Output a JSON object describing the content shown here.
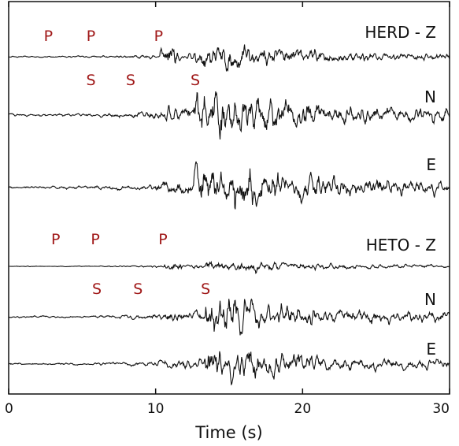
{
  "chart_data": {
    "type": "line",
    "xlabel": "Time (s)",
    "xlim": [
      0,
      30
    ],
    "xticks": [
      0,
      10,
      20,
      30
    ],
    "grid": false,
    "colors": {
      "trace": "#111111",
      "pick": "#a01818",
      "axis": "#111111"
    },
    "stations": [
      {
        "name": "HERD",
        "p_picks": [
          2.7,
          5.6,
          10.2
        ],
        "s_picks": [
          5.6,
          8.3,
          12.7
        ],
        "traces": [
          {
            "label": "HERD - Z",
            "component": "Z",
            "p_onset": 10.3,
            "s_onset": 12.6,
            "peak_amp": 0.7
          },
          {
            "label": "N",
            "component": "N",
            "p_onset": 10.3,
            "s_onset": 12.6,
            "peak_amp": 1.0
          },
          {
            "label": "E",
            "component": "E",
            "p_onset": 10.3,
            "s_onset": 12.6,
            "peak_amp": 1.0
          }
        ]
      },
      {
        "name": "HETO",
        "p_picks": [
          3.2,
          5.9,
          10.5
        ],
        "s_picks": [
          6.0,
          8.8,
          13.4
        ],
        "traces": [
          {
            "label": "HETO - Z",
            "component": "Z",
            "p_onset": 10.6,
            "s_onset": 13.4,
            "peak_amp": 0.3
          },
          {
            "label": "N",
            "component": "N",
            "p_onset": 10.6,
            "s_onset": 13.4,
            "peak_amp": 0.7
          },
          {
            "label": "E",
            "component": "E",
            "p_onset": 10.6,
            "s_onset": 13.4,
            "peak_amp": 0.7
          }
        ]
      }
    ],
    "pick_labels": {
      "p": "P",
      "s": "S"
    }
  }
}
